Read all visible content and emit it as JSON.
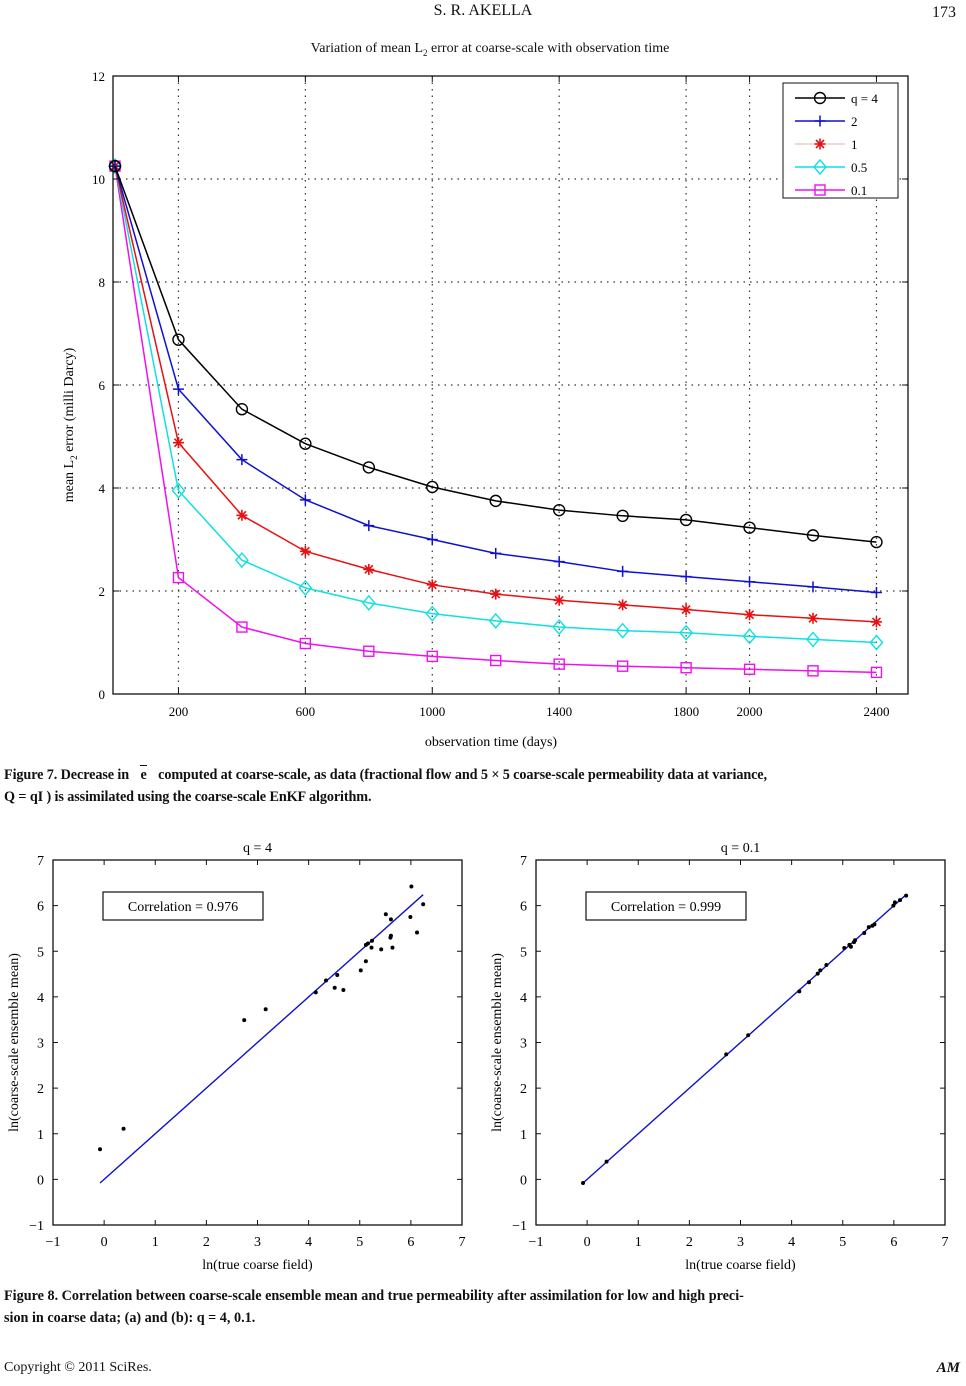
{
  "header": {
    "author": "S. R. AKELLA",
    "page_number": "173"
  },
  "figure7": {
    "caption_line1_a": "Figure 7. Decrease in ",
    "caption_symbol": "e",
    "caption_line1_b": " computed at coarse-scale, as data (fractional flow and 5 × 5 coarse-scale permeability data at variance,",
    "caption_line2": "Q = qI ) is assimilated using the coarse-scale EnKF algorithm."
  },
  "figure8": {
    "caption_line1": "Figure 8. Correlation between coarse-scale ensemble mean and true permeability after assimilation for low and high preci-",
    "caption_line2": "sion in coarse data; (a) and (b): q = 4, 0.1."
  },
  "footer": {
    "copyright": "Copyright © 2011 SciRes.",
    "journal": "AM"
  },
  "chart_data": [
    {
      "type": "line",
      "title_pre": "Variation of mean L",
      "title_sub": "2",
      "title_post": " error at coarse-scale with observation time",
      "xlabel": "observation time (days)",
      "ylabel_pre": "mean L",
      "ylabel_sub": "2",
      "ylabel_post": " error (milli Darcy)",
      "xlim": [
        0,
        2480
      ],
      "ylim": [
        0,
        12
      ],
      "xticks": [
        200,
        600,
        1000,
        1400,
        1800,
        2000,
        2400
      ],
      "xtick_labels": [
        "200",
        "600",
        "1000",
        "1400",
        "1800",
        "2000",
        "2400"
      ],
      "yticks": [
        0,
        2,
        4,
        6,
        8,
        10,
        12
      ],
      "ytick_labels": [
        "0",
        "2",
        "4",
        "6",
        "8",
        "10",
        "12"
      ],
      "grid": true,
      "legend_position": "top-right",
      "x": [
        0,
        200,
        400,
        600,
        800,
        1000,
        1200,
        1400,
        1600,
        1800,
        2000,
        2200,
        2400
      ],
      "series": [
        {
          "name": "q = 4",
          "color": "#000000",
          "marker": "circle",
          "values": [
            10.25,
            6.88,
            5.53,
            4.86,
            4.4,
            4.02,
            3.75,
            3.57,
            3.46,
            3.38,
            3.23,
            3.08,
            2.95
          ]
        },
        {
          "name": "2",
          "color": "#1010d0",
          "marker": "plus",
          "values": [
            10.25,
            5.92,
            4.55,
            3.77,
            3.27,
            3.0,
            2.73,
            2.57,
            2.38,
            2.28,
            2.18,
            2.08,
            1.97
          ]
        },
        {
          "name": "1",
          "color": "#e81010",
          "marker": "asterisk",
          "values": [
            10.25,
            4.88,
            3.47,
            2.77,
            2.42,
            2.12,
            1.94,
            1.82,
            1.73,
            1.64,
            1.54,
            1.47,
            1.4
          ]
        },
        {
          "name": "0.5",
          "color": "#10e0e0",
          "marker": "diamond",
          "values": [
            10.25,
            3.95,
            2.6,
            2.06,
            1.77,
            1.56,
            1.42,
            1.3,
            1.23,
            1.19,
            1.12,
            1.06,
            1.0
          ]
        },
        {
          "name": "0.1",
          "color": "#ee10ee",
          "marker": "square",
          "values": [
            10.25,
            2.26,
            1.3,
            0.98,
            0.83,
            0.73,
            0.65,
            0.58,
            0.54,
            0.51,
            0.48,
            0.45,
            0.42
          ]
        }
      ]
    },
    {
      "type": "scatter",
      "title": "q = 4",
      "annotation": "Correlation = 0.976",
      "xlabel": "ln(true coarse field)",
      "ylabel": "ln(coarse-scale ensemble mean)",
      "xlim": [
        -1,
        7
      ],
      "ylim": [
        -1,
        7
      ],
      "xticks": [
        -1,
        0,
        1,
        2,
        3,
        4,
        5,
        6,
        7
      ],
      "xtick_labels": [
        "−1",
        "0",
        "1",
        "2",
        "3",
        "4",
        "5",
        "6",
        "7"
      ],
      "yticks": [
        -1,
        0,
        1,
        2,
        3,
        4,
        5,
        6,
        7
      ],
      "ytick_labels": [
        "−1",
        "0",
        "1",
        "2",
        "3",
        "4",
        "5",
        "6",
        "7"
      ],
      "fit_line": {
        "color": "#1010d0",
        "x": [
          -0.08,
          6.24
        ],
        "y": [
          -0.08,
          6.24
        ]
      },
      "points": [
        [
          -0.08,
          0.66
        ],
        [
          0.38,
          1.11
        ],
        [
          2.74,
          3.49
        ],
        [
          3.16,
          3.73
        ],
        [
          4.14,
          4.1
        ],
        [
          4.34,
          4.36
        ],
        [
          4.51,
          4.2
        ],
        [
          4.56,
          4.48
        ],
        [
          4.68,
          4.15
        ],
        [
          5.02,
          4.58
        ],
        [
          5.12,
          4.78
        ],
        [
          5.12,
          5.14
        ],
        [
          5.16,
          5.17
        ],
        [
          5.23,
          5.08
        ],
        [
          5.24,
          5.23
        ],
        [
          5.42,
          5.04
        ],
        [
          5.51,
          5.81
        ],
        [
          5.61,
          5.7
        ],
        [
          5.6,
          5.3
        ],
        [
          5.61,
          5.34
        ],
        [
          5.64,
          5.08
        ],
        [
          5.99,
          5.75
        ],
        [
          6.01,
          6.42
        ],
        [
          6.12,
          5.41
        ],
        [
          6.24,
          6.03
        ]
      ]
    },
    {
      "type": "scatter",
      "title": "q = 0.1",
      "annotation": "Correlation = 0.999",
      "xlabel": "ln(true coarse field)",
      "ylabel": "ln(coarse-scale ensemble mean)",
      "xlim": [
        -1,
        7
      ],
      "ylim": [
        -1,
        7
      ],
      "xticks": [
        -1,
        0,
        1,
        2,
        3,
        4,
        5,
        6,
        7
      ],
      "xtick_labels": [
        "−1",
        "0",
        "1",
        "2",
        "3",
        "4",
        "5",
        "6",
        "7"
      ],
      "yticks": [
        -1,
        0,
        1,
        2,
        3,
        4,
        5,
        6,
        7
      ],
      "ytick_labels": [
        "−1",
        "0",
        "1",
        "2",
        "3",
        "4",
        "5",
        "6",
        "7"
      ],
      "fit_line": {
        "color": "#1010d0",
        "x": [
          -0.08,
          6.24
        ],
        "y": [
          -0.08,
          6.24
        ]
      },
      "points": [
        [
          -0.08,
          -0.08
        ],
        [
          0.38,
          0.39
        ],
        [
          2.72,
          2.74
        ],
        [
          3.15,
          3.16
        ],
        [
          4.15,
          4.12
        ],
        [
          4.34,
          4.32
        ],
        [
          4.51,
          4.51
        ],
        [
          4.56,
          4.58
        ],
        [
          4.68,
          4.7
        ],
        [
          5.03,
          5.07
        ],
        [
          5.13,
          5.14
        ],
        [
          5.16,
          5.1
        ],
        [
          5.22,
          5.2
        ],
        [
          5.24,
          5.24
        ],
        [
          5.42,
          5.4
        ],
        [
          5.51,
          5.53
        ],
        [
          5.58,
          5.56
        ],
        [
          5.62,
          5.59
        ],
        [
          5.99,
          6.0
        ],
        [
          6.02,
          6.07
        ],
        [
          6.12,
          6.12
        ],
        [
          6.24,
          6.22
        ]
      ]
    }
  ]
}
